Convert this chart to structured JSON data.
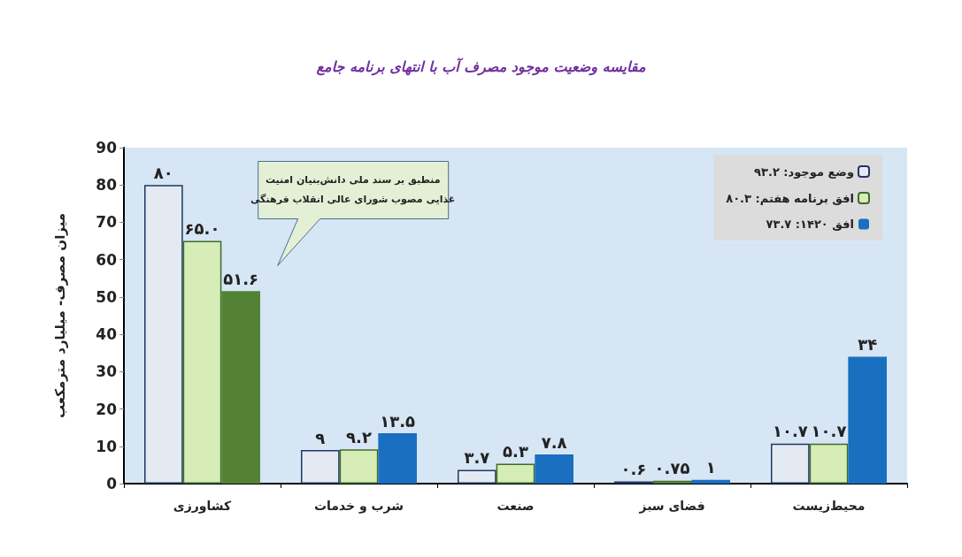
{
  "chart_data": {
    "type": "bar",
    "title": "مقایسه وضعیت موجود مصرف آب با انتهای برنامه جامع",
    "ylabel": "میزان مصرف- میلیارد مترمکعب",
    "categories": [
      "کشاورزی",
      "شرب و خدمات",
      "صنعت",
      "فضای سبز",
      "محیط‌زیست"
    ],
    "series": [
      {
        "name": "وضع موجود: ۹۳.۲",
        "color": "#e4eaf2",
        "values": [
          80,
          9,
          3.7,
          0.6,
          10.7
        ],
        "value_labels": [
          "۸۰",
          "۹",
          "۳.۷",
          "۰.۶",
          "۱۰.۷"
        ]
      },
      {
        "name": "افق برنامه هفتم: ۸۰.۳",
        "color": "#d6edb8",
        "values": [
          65,
          9.2,
          5.3,
          0.75,
          10.7
        ],
        "value_labels": [
          "۶۵.۰",
          "۹.۲",
          "۵.۳",
          "۰.۷۵",
          "۱۰.۷"
        ]
      },
      {
        "name": "افق ۱۴۲۰: ۷۳.۷",
        "color": "#1a6fc0",
        "colors": [
          "#548235",
          "#1a6fc0",
          "#1a6fc0",
          "#1a6fc0",
          "#1a6fc0"
        ],
        "values": [
          51.6,
          13.5,
          7.8,
          1,
          34
        ],
        "value_labels": [
          "۵۱.۶",
          "۱۳.۵",
          "۷.۸",
          "۱",
          "۳۴"
        ]
      }
    ],
    "ylim": [
      0,
      90
    ],
    "yticks": [
      0,
      10,
      20,
      30,
      40,
      50,
      60,
      70,
      80,
      90
    ],
    "grid": false,
    "legend": "top right",
    "annotations": [
      "منطبق بر سند ملی دانش‌بنیان امنیت\nغذایی مصوب شورای عالی انقلاب فرهنگی"
    ]
  }
}
